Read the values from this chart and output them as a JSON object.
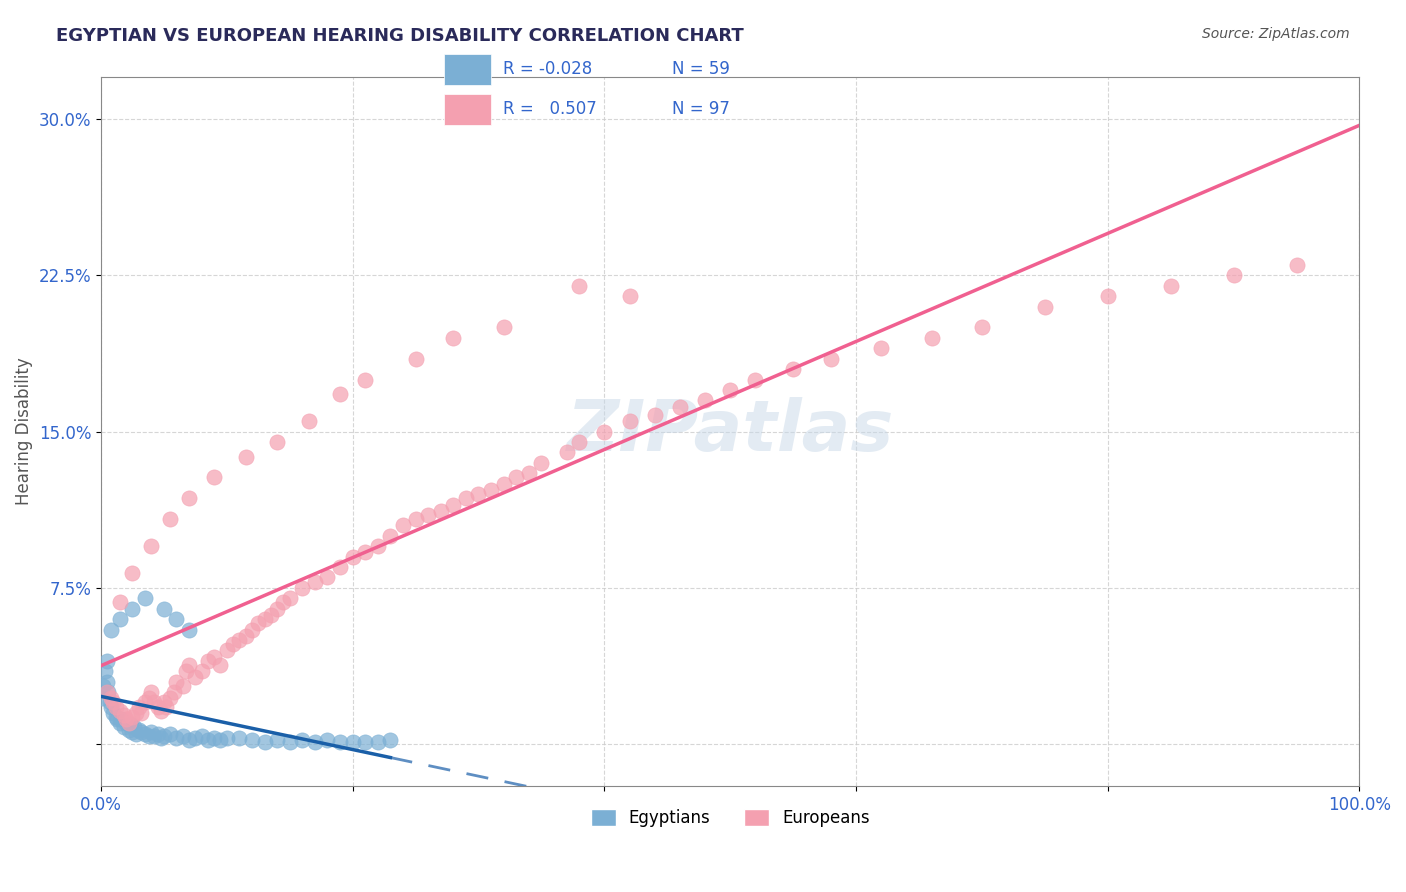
{
  "title": "EGYPTIAN VS EUROPEAN HEARING DISABILITY CORRELATION CHART",
  "source": "Source: ZipAtlas.com",
  "ylabel": "Hearing Disability",
  "xlabel": "",
  "xlim": [
    0,
    1.0
  ],
  "ylim": [
    -0.02,
    0.32
  ],
  "yticks": [
    0.0,
    0.075,
    0.15,
    0.225,
    0.3
  ],
  "ytick_labels": [
    "",
    "7.5%",
    "15.0%",
    "22.5%",
    "30.0%"
  ],
  "xtick_labels": [
    "0.0%",
    "",
    "",
    "",
    "",
    "100.0%"
  ],
  "egyptian_color": "#7bafd4",
  "european_color": "#f4a0b0",
  "egyptian_line_color": "#1a5fa8",
  "european_line_color": "#f06090",
  "watermark": "ZIPatlas",
  "legend_R_egyptian": "R = -0.028",
  "legend_N_egyptian": "N = 59",
  "legend_R_european": "R =  0.507",
  "legend_N_european": "N = 97",
  "egyptian_points_x": [
    0.005,
    0.006,
    0.007,
    0.008,
    0.01,
    0.012,
    0.013,
    0.015,
    0.016,
    0.018,
    0.02,
    0.022,
    0.024,
    0.025,
    0.026,
    0.028,
    0.03,
    0.032,
    0.035,
    0.038,
    0.04,
    0.042,
    0.045,
    0.048,
    0.05,
    0.055,
    0.06,
    0.065,
    0.07,
    0.075,
    0.08,
    0.085,
    0.09,
    0.095,
    0.1,
    0.11,
    0.12,
    0.13,
    0.14,
    0.15,
    0.16,
    0.17,
    0.18,
    0.19,
    0.2,
    0.21,
    0.22,
    0.23,
    0.005,
    0.003,
    0.002,
    0.001,
    0.008,
    0.015,
    0.025,
    0.035,
    0.05,
    0.06,
    0.07
  ],
  "egyptian_points_y": [
    0.03,
    0.025,
    0.02,
    0.018,
    0.015,
    0.013,
    0.012,
    0.01,
    0.012,
    0.008,
    0.01,
    0.007,
    0.009,
    0.006,
    0.008,
    0.005,
    0.007,
    0.006,
    0.005,
    0.004,
    0.006,
    0.004,
    0.005,
    0.003,
    0.004,
    0.005,
    0.003,
    0.004,
    0.002,
    0.003,
    0.004,
    0.002,
    0.003,
    0.002,
    0.003,
    0.003,
    0.002,
    0.001,
    0.002,
    0.001,
    0.002,
    0.001,
    0.002,
    0.001,
    0.001,
    0.001,
    0.001,
    0.002,
    0.04,
    0.035,
    0.028,
    0.022,
    0.055,
    0.06,
    0.065,
    0.07,
    0.065,
    0.06,
    0.055
  ],
  "european_points_x": [
    0.005,
    0.008,
    0.01,
    0.012,
    0.015,
    0.018,
    0.02,
    0.022,
    0.025,
    0.028,
    0.03,
    0.032,
    0.035,
    0.038,
    0.04,
    0.042,
    0.045,
    0.048,
    0.05,
    0.052,
    0.055,
    0.058,
    0.06,
    0.065,
    0.068,
    0.07,
    0.075,
    0.08,
    0.085,
    0.09,
    0.095,
    0.1,
    0.105,
    0.11,
    0.115,
    0.12,
    0.125,
    0.13,
    0.135,
    0.14,
    0.145,
    0.15,
    0.16,
    0.17,
    0.18,
    0.19,
    0.2,
    0.21,
    0.22,
    0.23,
    0.24,
    0.25,
    0.26,
    0.27,
    0.28,
    0.29,
    0.3,
    0.31,
    0.32,
    0.33,
    0.34,
    0.35,
    0.37,
    0.38,
    0.4,
    0.42,
    0.44,
    0.46,
    0.48,
    0.5,
    0.52,
    0.55,
    0.58,
    0.62,
    0.66,
    0.7,
    0.75,
    0.8,
    0.85,
    0.9,
    0.95,
    0.38,
    0.42,
    0.32,
    0.28,
    0.25,
    0.21,
    0.19,
    0.165,
    0.14,
    0.115,
    0.09,
    0.07,
    0.055,
    0.04,
    0.025,
    0.015
  ],
  "european_points_y": [
    0.025,
    0.022,
    0.02,
    0.018,
    0.016,
    0.014,
    0.012,
    0.01,
    0.013,
    0.015,
    0.018,
    0.015,
    0.02,
    0.022,
    0.025,
    0.02,
    0.018,
    0.016,
    0.02,
    0.018,
    0.022,
    0.025,
    0.03,
    0.028,
    0.035,
    0.038,
    0.032,
    0.035,
    0.04,
    0.042,
    0.038,
    0.045,
    0.048,
    0.05,
    0.052,
    0.055,
    0.058,
    0.06,
    0.062,
    0.065,
    0.068,
    0.07,
    0.075,
    0.078,
    0.08,
    0.085,
    0.09,
    0.092,
    0.095,
    0.1,
    0.105,
    0.108,
    0.11,
    0.112,
    0.115,
    0.118,
    0.12,
    0.122,
    0.125,
    0.128,
    0.13,
    0.135,
    0.14,
    0.145,
    0.15,
    0.155,
    0.158,
    0.162,
    0.165,
    0.17,
    0.175,
    0.18,
    0.185,
    0.19,
    0.195,
    0.2,
    0.21,
    0.215,
    0.22,
    0.225,
    0.23,
    0.22,
    0.215,
    0.2,
    0.195,
    0.185,
    0.175,
    0.168,
    0.155,
    0.145,
    0.138,
    0.128,
    0.118,
    0.108,
    0.095,
    0.082,
    0.068
  ]
}
